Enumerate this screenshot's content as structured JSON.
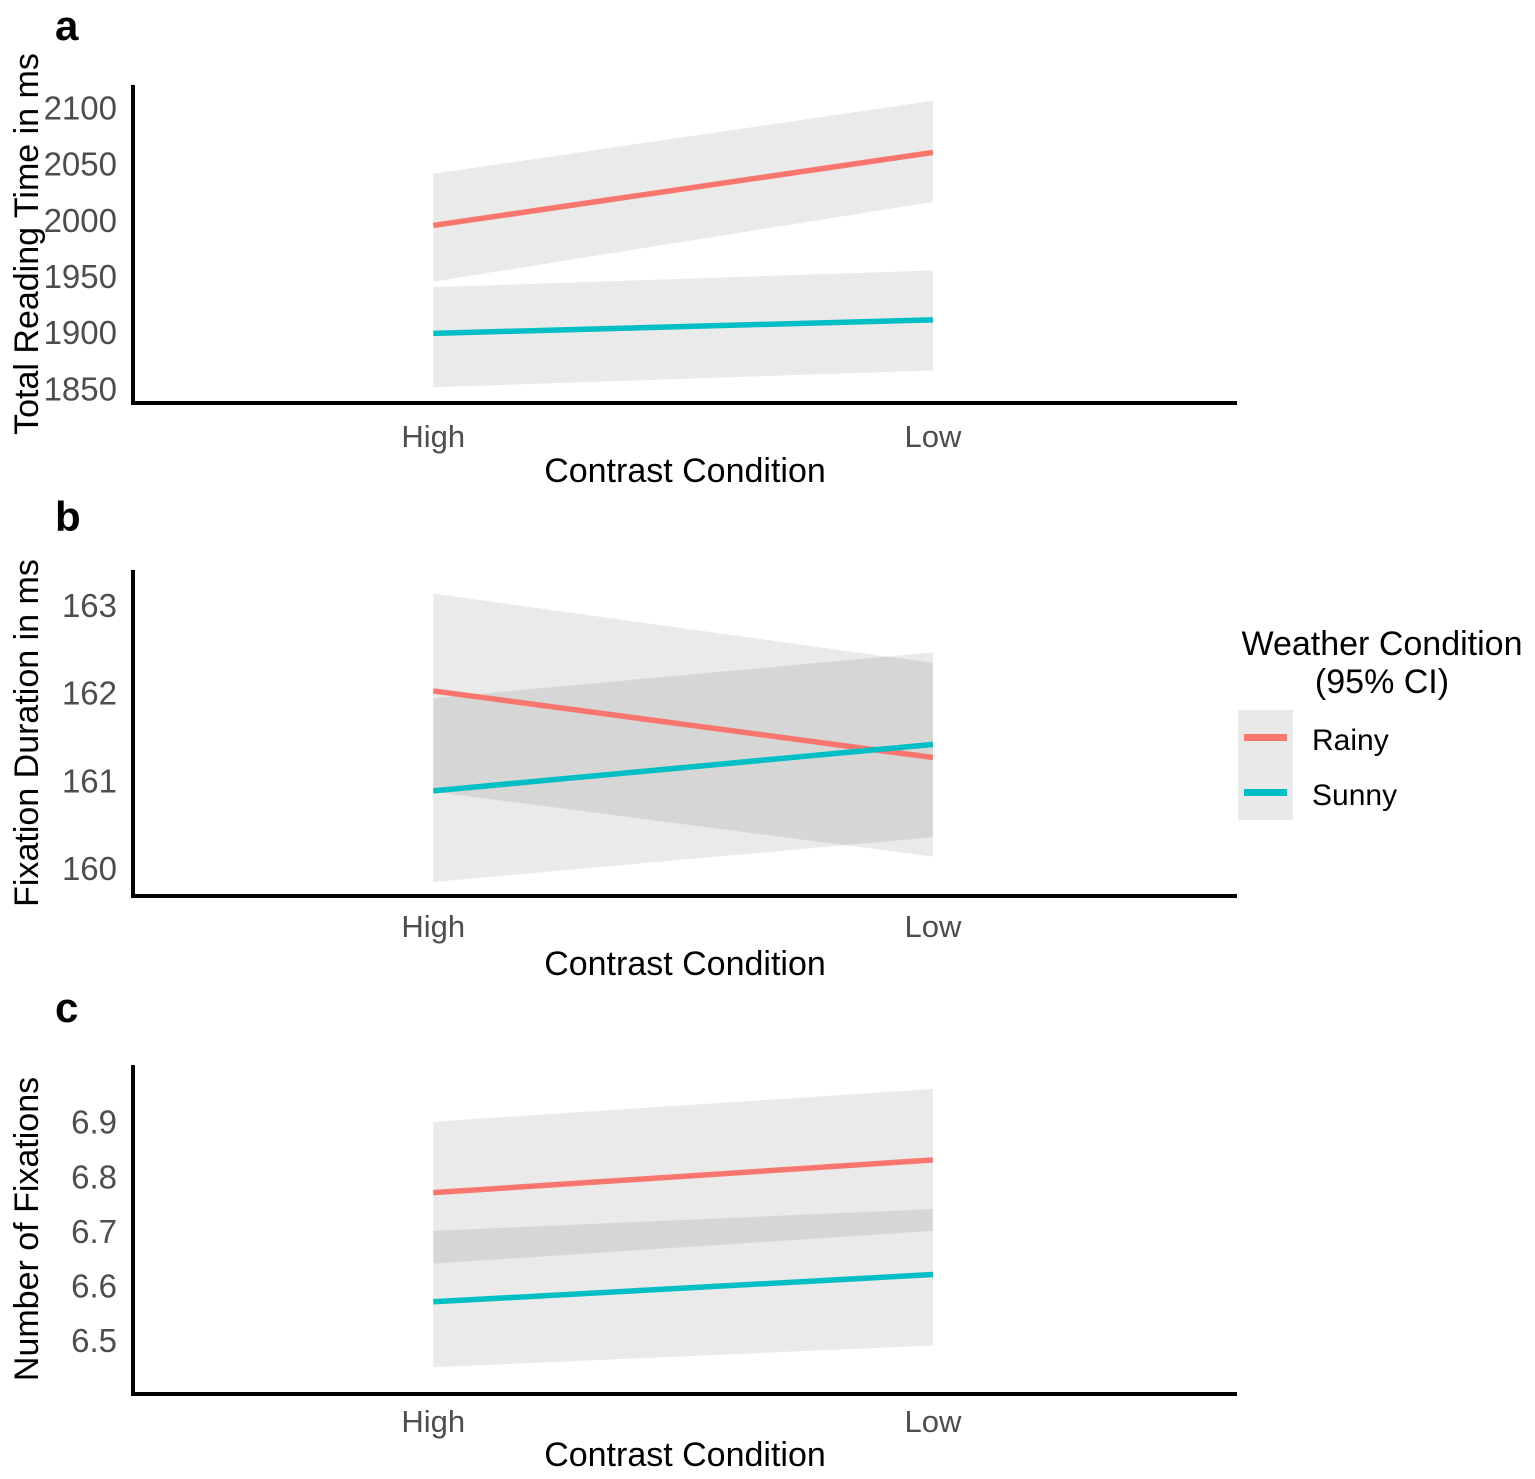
{
  "figure": {
    "kind": "three-panel interaction plot with 95% confidence ribbons",
    "background": "#ffffff"
  },
  "colors": {
    "rainy": "#F8766D",
    "sunny": "#00BFC4",
    "ci_fill": "rgba(0,0,0,0.082)",
    "axis_line": "#000000",
    "tick_text": "#4d4d4d",
    "legend_key_fill": "#e9e9e9"
  },
  "legend": {
    "title_line1": "Weather Condition",
    "title_line2": "(95% CI)",
    "entries": [
      {
        "label": "Rainy",
        "color": "#F8766D"
      },
      {
        "label": "Sunny",
        "color": "#00BFC4"
      }
    ]
  },
  "chart_data": [
    {
      "id": "a",
      "panel_label": "a",
      "type": "line",
      "xlabel": "Contrast Condition",
      "ylabel": "Total Reading Time in ms",
      "categories": [
        "High",
        "Low"
      ],
      "yticks": [
        1850,
        1900,
        1950,
        2000,
        2050,
        2100
      ],
      "ylim": [
        1837,
        2120
      ],
      "grid": false,
      "legend_position": "right-of-panel-b",
      "series": [
        {
          "name": "Rainy",
          "color": "#F8766D",
          "values": [
            1995,
            2060
          ],
          "ci_lower": [
            1945,
            2016
          ],
          "ci_upper": [
            2041,
            2106
          ]
        },
        {
          "name": "Sunny",
          "color": "#00BFC4",
          "values": [
            1899,
            1911
          ],
          "ci_lower": [
            1851,
            1866
          ],
          "ci_upper": [
            1940,
            1955
          ]
        }
      ]
    },
    {
      "id": "b",
      "panel_label": "b",
      "type": "line",
      "xlabel": "Contrast Condition",
      "ylabel": "Fixation Duration in ms",
      "categories": [
        "High",
        "Low"
      ],
      "yticks": [
        160,
        161,
        162,
        163
      ],
      "ylim": [
        159.68,
        163.4
      ],
      "grid": false,
      "series": [
        {
          "name": "Rainy",
          "color": "#F8766D",
          "values": [
            162.02,
            161.26
          ],
          "ci_lower": [
            160.87,
            160.13
          ],
          "ci_upper": [
            163.13,
            162.34
          ]
        },
        {
          "name": "Sunny",
          "color": "#00BFC4",
          "values": [
            160.88,
            161.41
          ],
          "ci_lower": [
            159.84,
            160.35
          ],
          "ci_upper": [
            161.94,
            162.46
          ]
        }
      ]
    },
    {
      "id": "c",
      "panel_label": "c",
      "type": "line",
      "xlabel": "Contrast Condition",
      "ylabel": "Number of Fixations",
      "categories": [
        "High",
        "Low"
      ],
      "yticks": [
        6.5,
        6.6,
        6.7,
        6.8,
        6.9
      ],
      "ylim": [
        6.401,
        7.004
      ],
      "grid": false,
      "series": [
        {
          "name": "Rainy",
          "color": "#F8766D",
          "values": [
            6.77,
            6.83
          ],
          "ci_lower": [
            6.64,
            6.7
          ],
          "ci_upper": [
            6.9,
            6.96
          ]
        },
        {
          "name": "Sunny",
          "color": "#00BFC4",
          "values": [
            6.57,
            6.62
          ],
          "ci_lower": [
            6.45,
            6.49
          ],
          "ci_upper": [
            6.7,
            6.74
          ]
        }
      ]
    }
  ]
}
